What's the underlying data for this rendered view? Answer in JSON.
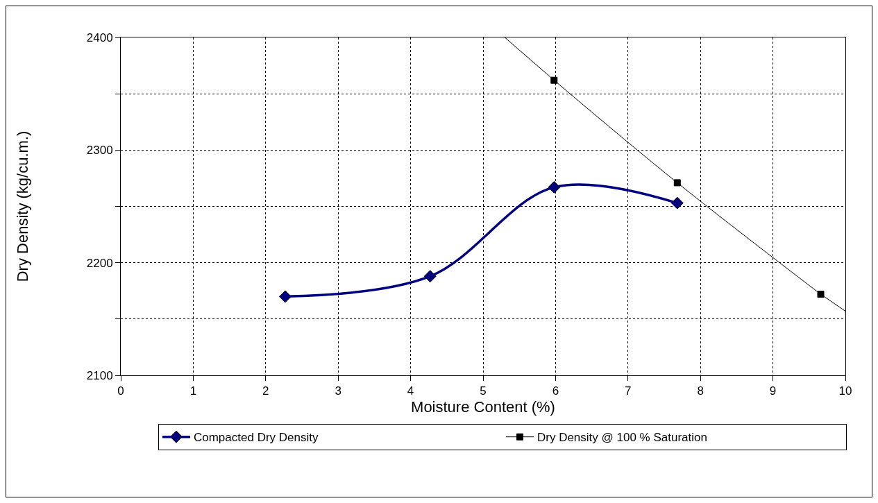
{
  "chart_data": {
    "type": "line",
    "xlabel": "Moisture Content (%)",
    "ylabel": "Dry Density (kg/cu.m.)",
    "xlim": [
      0,
      10
    ],
    "xticks": [
      0,
      1,
      2,
      3,
      4,
      5,
      6,
      7,
      8,
      9,
      10
    ],
    "ylim": [
      2100,
      2400
    ],
    "yticks": [
      2100,
      {
        "value": 2150,
        "label": null
      },
      2200,
      {
        "value": 2250,
        "label": null
      },
      2300,
      {
        "value": 2350,
        "label": null
      },
      2400
    ],
    "grid": true,
    "legend": "bottom",
    "line_style": "solid",
    "series": [
      {
        "name": "Compacted Dry Density",
        "color": "#000080",
        "marker": "diamond",
        "x": [
          2.27,
          4.27,
          5.98,
          7.68
        ],
        "values": [
          2170,
          2188,
          2267,
          2253
        ]
      },
      {
        "name": "Dry Density @ 100 % Saturation",
        "color": "#000000",
        "marker": "square",
        "x": [
          5.98,
          7.68,
          9.66
        ],
        "values": [
          2362,
          2271,
          2172
        ]
      },
      {
        "color": "#000000",
        "marker": "none",
        "x": [
          5.3,
          5.98
        ],
        "values": [
          2400,
          2362
        ]
      },
      {
        "color": "#000000",
        "marker": "none",
        "x": [
          9.66,
          10
        ],
        "values": [
          2172,
          2157
        ]
      }
    ]
  }
}
